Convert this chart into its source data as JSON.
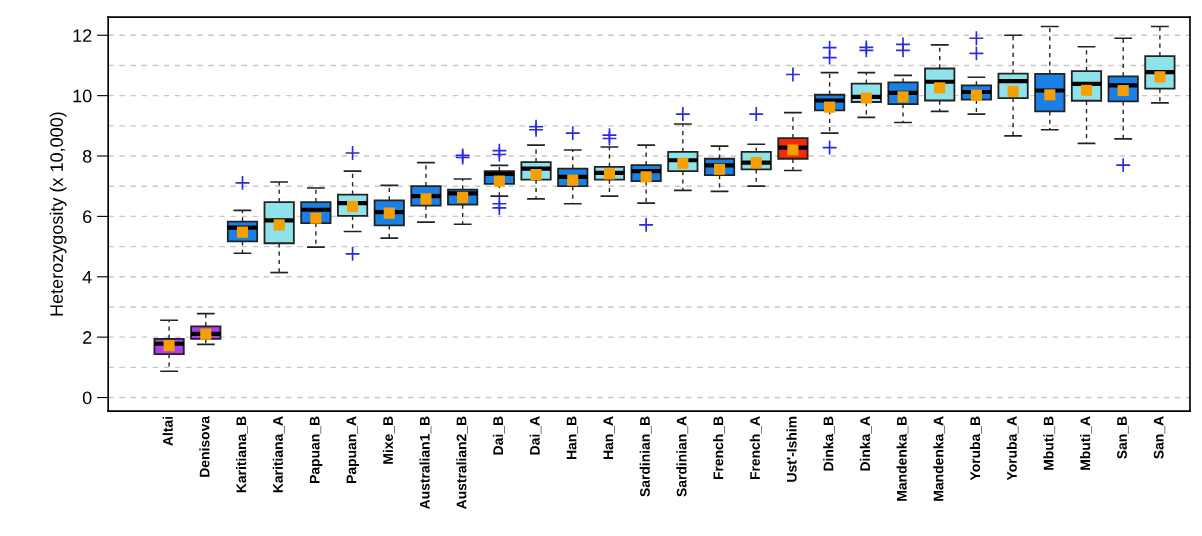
{
  "chart_data": {
    "type": "box",
    "ylabel": "Heterozygosity (x 10,000)",
    "categories": [
      "Altai",
      "Denisova",
      "Karitiana_B",
      "Karitiana_A",
      "Papuan_B",
      "Papuan_A",
      "Mixe_B",
      "Australian1_B",
      "Australian2_B",
      "Dai_B",
      "Dai_A",
      "Han_B",
      "Han_A",
      "Sardinian_B",
      "Sardinian_A",
      "French_B",
      "French_A",
      "Ust'-Ishim",
      "Dinka_B",
      "Dinka_A",
      "Mandenka_B",
      "Mandenka_A",
      "Yoruba_B",
      "Yoruba_A",
      "Mbuti_B",
      "Mbuti_A",
      "San_B",
      "San_A"
    ],
    "colors": [
      "#b03ee8",
      "#b03ee8",
      "#1a80e6",
      "#8ee3ea",
      "#1a80e6",
      "#8ee3ea",
      "#1a80e6",
      "#1a80e6",
      "#1a80e6",
      "#1a80e6",
      "#8ee3ea",
      "#1a80e6",
      "#8ee3ea",
      "#1a80e6",
      "#8ee3ea",
      "#1a80e6",
      "#8ee3ea",
      "#f42a0a",
      "#1a80e6",
      "#8ee3ea",
      "#1a80e6",
      "#8ee3ea",
      "#1a80e6",
      "#8ee3ea",
      "#1a80e6",
      "#8ee3ea",
      "#1a80e6",
      "#8ee3ea"
    ],
    "boxes": [
      {
        "low": 0.87,
        "q1": 1.44,
        "median": 1.78,
        "q3": 1.94,
        "high": 2.56,
        "mean": 1.72
      },
      {
        "low": 1.76,
        "q1": 1.94,
        "median": 2.11,
        "q3": 2.36,
        "high": 2.78,
        "mean": 2.1
      },
      {
        "low": 4.78,
        "q1": 5.17,
        "median": 5.63,
        "q3": 5.83,
        "high": 6.2,
        "mean": 5.48,
        "outliers": [
          7.11
        ]
      },
      {
        "low": 4.14,
        "q1": 5.11,
        "median": 5.87,
        "q3": 6.47,
        "high": 7.14,
        "mean": 5.72
      },
      {
        "low": 4.98,
        "q1": 5.78,
        "median": 6.22,
        "q3": 6.47,
        "high": 6.94,
        "mean": 5.94
      },
      {
        "low": 5.5,
        "q1": 6.02,
        "median": 6.44,
        "q3": 6.72,
        "high": 7.5,
        "mean": 6.33,
        "outliers": [
          4.76,
          8.1
        ]
      },
      {
        "low": 5.28,
        "q1": 5.7,
        "median": 6.14,
        "q3": 6.53,
        "high": 7.03,
        "mean": 6.11
      },
      {
        "low": 5.81,
        "q1": 6.36,
        "median": 6.67,
        "q3": 7.0,
        "high": 7.78,
        "mean": 6.58
      },
      {
        "low": 5.74,
        "q1": 6.39,
        "median": 6.76,
        "q3": 6.89,
        "high": 7.24,
        "mean": 6.63,
        "outliers": [
          7.95,
          8.02
        ]
      },
      {
        "low": 6.67,
        "q1": 7.08,
        "median": 7.41,
        "q3": 7.5,
        "high": 7.69,
        "mean": 7.17,
        "outliers": [
          8.05,
          8.18,
          6.42,
          6.28
        ]
      },
      {
        "low": 6.58,
        "q1": 7.22,
        "median": 7.58,
        "q3": 7.8,
        "high": 8.36,
        "mean": 7.39,
        "outliers": [
          8.87,
          8.97
        ]
      },
      {
        "low": 6.42,
        "q1": 7.0,
        "median": 7.31,
        "q3": 7.58,
        "high": 8.2,
        "mean": 7.2,
        "outliers": [
          8.76
        ]
      },
      {
        "low": 6.67,
        "q1": 7.22,
        "median": 7.44,
        "q3": 7.64,
        "high": 8.3,
        "mean": 7.41,
        "outliers": [
          8.58,
          8.69
        ]
      },
      {
        "low": 6.44,
        "q1": 7.17,
        "median": 7.5,
        "q3": 7.7,
        "high": 8.36,
        "mean": 7.31,
        "outliers": [
          5.72
        ]
      },
      {
        "low": 6.86,
        "q1": 7.5,
        "median": 7.86,
        "q3": 8.14,
        "high": 9.06,
        "mean": 7.76,
        "outliers": [
          9.39
        ]
      },
      {
        "low": 6.83,
        "q1": 7.37,
        "median": 7.69,
        "q3": 7.91,
        "high": 8.33,
        "mean": 7.56
      },
      {
        "low": 7.0,
        "q1": 7.56,
        "median": 7.78,
        "q3": 8.14,
        "high": 8.39,
        "mean": 7.78,
        "outliers": [
          9.39
        ]
      },
      {
        "low": 7.52,
        "q1": 7.91,
        "median": 8.28,
        "q3": 8.59,
        "high": 9.44,
        "mean": 8.2,
        "outliers": [
          10.7
        ]
      },
      {
        "low": 8.76,
        "q1": 9.51,
        "median": 9.84,
        "q3": 10.03,
        "high": 10.76,
        "mean": 9.62,
        "outliers": [
          11.26,
          11.59,
          8.28
        ]
      },
      {
        "low": 9.28,
        "q1": 9.79,
        "median": 9.96,
        "q3": 10.4,
        "high": 10.76,
        "mean": 9.92,
        "outliers": [
          11.5,
          11.6
        ]
      },
      {
        "low": 9.11,
        "q1": 9.72,
        "median": 10.09,
        "q3": 10.44,
        "high": 10.67,
        "mean": 9.96,
        "outliers": [
          11.5,
          11.7
        ]
      },
      {
        "low": 9.48,
        "q1": 9.84,
        "median": 10.46,
        "q3": 10.9,
        "high": 11.68,
        "mean": 10.26
      },
      {
        "low": 9.39,
        "q1": 9.87,
        "median": 10.12,
        "q3": 10.34,
        "high": 10.61,
        "mean": 10.01,
        "outliers": [
          11.4,
          11.9
        ]
      },
      {
        "low": 8.67,
        "q1": 9.92,
        "median": 10.48,
        "q3": 10.73,
        "high": 12.0,
        "mean": 10.14
      },
      {
        "low": 8.87,
        "q1": 9.48,
        "median": 10.17,
        "q3": 10.72,
        "high": 12.29,
        "mean": 10.03
      },
      {
        "low": 8.42,
        "q1": 9.83,
        "median": 10.39,
        "q3": 10.81,
        "high": 11.62,
        "mean": 10.18
      },
      {
        "low": 8.57,
        "q1": 9.81,
        "median": 10.34,
        "q3": 10.64,
        "high": 11.9,
        "mean": 10.17,
        "outliers": [
          7.7
        ]
      },
      {
        "low": 9.76,
        "q1": 10.23,
        "median": 10.78,
        "q3": 11.31,
        "high": 12.29,
        "mean": 10.62
      }
    ],
    "ylim": [
      -0.45,
      12.6
    ],
    "yticks": [
      0,
      {
        "value": 1,
        "label": null
      },
      2,
      {
        "value": 3,
        "label": null
      },
      4,
      {
        "value": 5,
        "label": null
      },
      6,
      {
        "value": 7,
        "label": null
      },
      8,
      {
        "value": 9,
        "label": null
      },
      10,
      {
        "value": 11,
        "label": null
      },
      12
    ],
    "grid": "y"
  }
}
